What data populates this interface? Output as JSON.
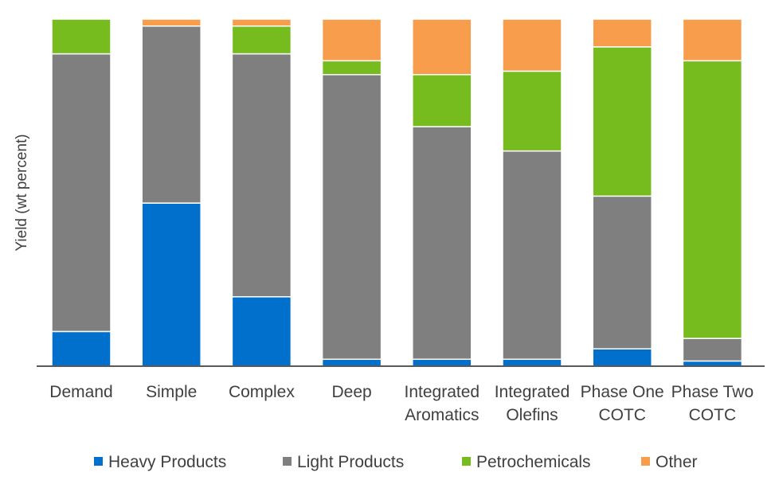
{
  "chart_data": {
    "type": "bar",
    "stacked": true,
    "title": "",
    "xlabel": "",
    "ylabel": "Yield (wt percent)",
    "ylim": [
      0,
      100
    ],
    "grid": false,
    "legend_position": "bottom",
    "categories": [
      [
        "Demand"
      ],
      [
        "Simple"
      ],
      [
        "Complex"
      ],
      [
        "Deep"
      ],
      [
        "Integrated",
        "Aromatics"
      ],
      [
        "Integrated",
        "Olefins"
      ],
      [
        "Phase One",
        "COTC"
      ],
      [
        "Phase Two",
        "COTC"
      ]
    ],
    "series": [
      {
        "name": "Heavy Products",
        "color": "#0070CC",
        "values": [
          10,
          47,
          20,
          2,
          2,
          2,
          5,
          1.5
        ]
      },
      {
        "name": "Light Products",
        "color": "#7F7F7F",
        "values": [
          80,
          51,
          70,
          82,
          67,
          60,
          44,
          6.5
        ]
      },
      {
        "name": "Petrochemicals",
        "color": "#77BC1F",
        "values": [
          10,
          0,
          8,
          4,
          15,
          23,
          43,
          80
        ]
      },
      {
        "name": "Other",
        "color": "#F79D4C",
        "values": [
          0,
          2,
          2,
          12,
          16,
          15,
          8,
          12
        ]
      }
    ]
  }
}
